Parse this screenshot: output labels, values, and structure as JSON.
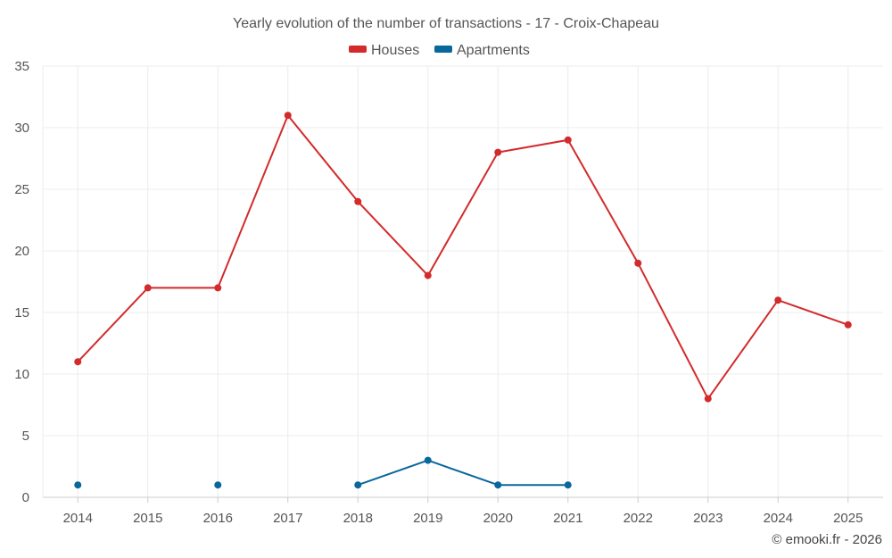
{
  "chart_data": {
    "type": "line",
    "title": "Yearly evolution of the number of transactions - 17 - Croix-Chapeau",
    "categories": [
      "2014",
      "2015",
      "2016",
      "2017",
      "2018",
      "2019",
      "2020",
      "2021",
      "2022",
      "2023",
      "2024",
      "2025"
    ],
    "ylim": [
      0,
      35
    ],
    "yticks": [
      0,
      5,
      10,
      15,
      20,
      25,
      30,
      35
    ],
    "grid": true,
    "legend_position": "top-center",
    "series": [
      {
        "name": "Houses",
        "color": "#d32b2b",
        "values": [
          11,
          17,
          17,
          31,
          24,
          18,
          28,
          29,
          19,
          8,
          16,
          14
        ]
      },
      {
        "name": "Apartments",
        "color": "#08679b",
        "values": [
          1,
          null,
          1,
          null,
          1,
          3,
          1,
          1,
          null,
          null,
          null,
          null
        ]
      }
    ],
    "credit": "© emooki.fr - 2026"
  }
}
